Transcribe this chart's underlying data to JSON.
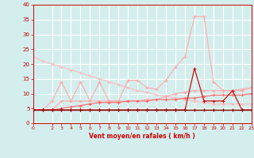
{
  "x": [
    0,
    1,
    2,
    3,
    4,
    5,
    6,
    7,
    8,
    9,
    10,
    11,
    12,
    13,
    14,
    15,
    16,
    17,
    18,
    19,
    20,
    21,
    22,
    23
  ],
  "line1": [
    22.5,
    21.0,
    20.0,
    19.0,
    18.0,
    17.0,
    16.0,
    15.0,
    14.0,
    13.0,
    12.0,
    11.0,
    10.5,
    9.5,
    9.0,
    8.5,
    8.0,
    7.5,
    7.0,
    6.5,
    6.5,
    6.5,
    6.5,
    6.5
  ],
  "line2": [
    4.5,
    4.5,
    7.5,
    14.0,
    7.5,
    14.0,
    7.5,
    14.0,
    7.5,
    7.5,
    14.5,
    14.5,
    12.0,
    11.5,
    14.5,
    19.0,
    22.5,
    36.0,
    36.0,
    14.0,
    11.0,
    11.0,
    11.0,
    12.0
  ],
  "line3": [
    4.5,
    4.5,
    4.5,
    7.5,
    7.5,
    7.5,
    7.5,
    7.5,
    7.5,
    7.5,
    7.5,
    7.5,
    8.0,
    8.0,
    9.0,
    10.0,
    10.5,
    11.0,
    11.0,
    11.0,
    11.0,
    11.0,
    11.5,
    12.0
  ],
  "line4": [
    4.5,
    4.5,
    4.5,
    5.0,
    5.5,
    6.0,
    6.5,
    7.0,
    7.0,
    7.0,
    7.5,
    7.5,
    7.5,
    8.0,
    8.0,
    8.0,
    8.5,
    8.5,
    9.0,
    9.5,
    9.5,
    9.5,
    9.5,
    10.0
  ],
  "line5": [
    4.5,
    4.5,
    4.5,
    4.5,
    4.5,
    4.5,
    4.5,
    4.5,
    4.5,
    4.5,
    4.5,
    4.5,
    4.5,
    4.5,
    4.5,
    4.5,
    4.5,
    18.5,
    7.5,
    7.5,
    7.5,
    11.0,
    4.5,
    4.5
  ],
  "line6": [
    4.5,
    4.5,
    4.5,
    4.5,
    4.5,
    4.5,
    4.5,
    4.5,
    4.5,
    4.5,
    4.5,
    4.5,
    4.5,
    4.5,
    4.5,
    4.5,
    4.5,
    4.5,
    4.5,
    4.5,
    4.5,
    4.5,
    4.5,
    4.5
  ],
  "bg_color": "#d4eeee",
  "grid_color": "#ffffff",
  "line1_color": "#ffbbbb",
  "line2_color": "#ffaaaa",
  "line3_color": "#ffaaaa",
  "line4_color": "#ff6666",
  "line5_color": "#cc1111",
  "line6_color": "#880000",
  "xlabel": "Vent moyen/en rafales ( km/h )",
  "ylim": [
    0,
    40
  ],
  "xlim": [
    0,
    23
  ],
  "yticks": [
    0,
    5,
    10,
    15,
    20,
    25,
    30,
    35,
    40
  ],
  "xticks": [
    0,
    2,
    3,
    4,
    5,
    6,
    7,
    8,
    9,
    10,
    11,
    12,
    13,
    14,
    15,
    16,
    17,
    18,
    19,
    20,
    21,
    22,
    23
  ]
}
